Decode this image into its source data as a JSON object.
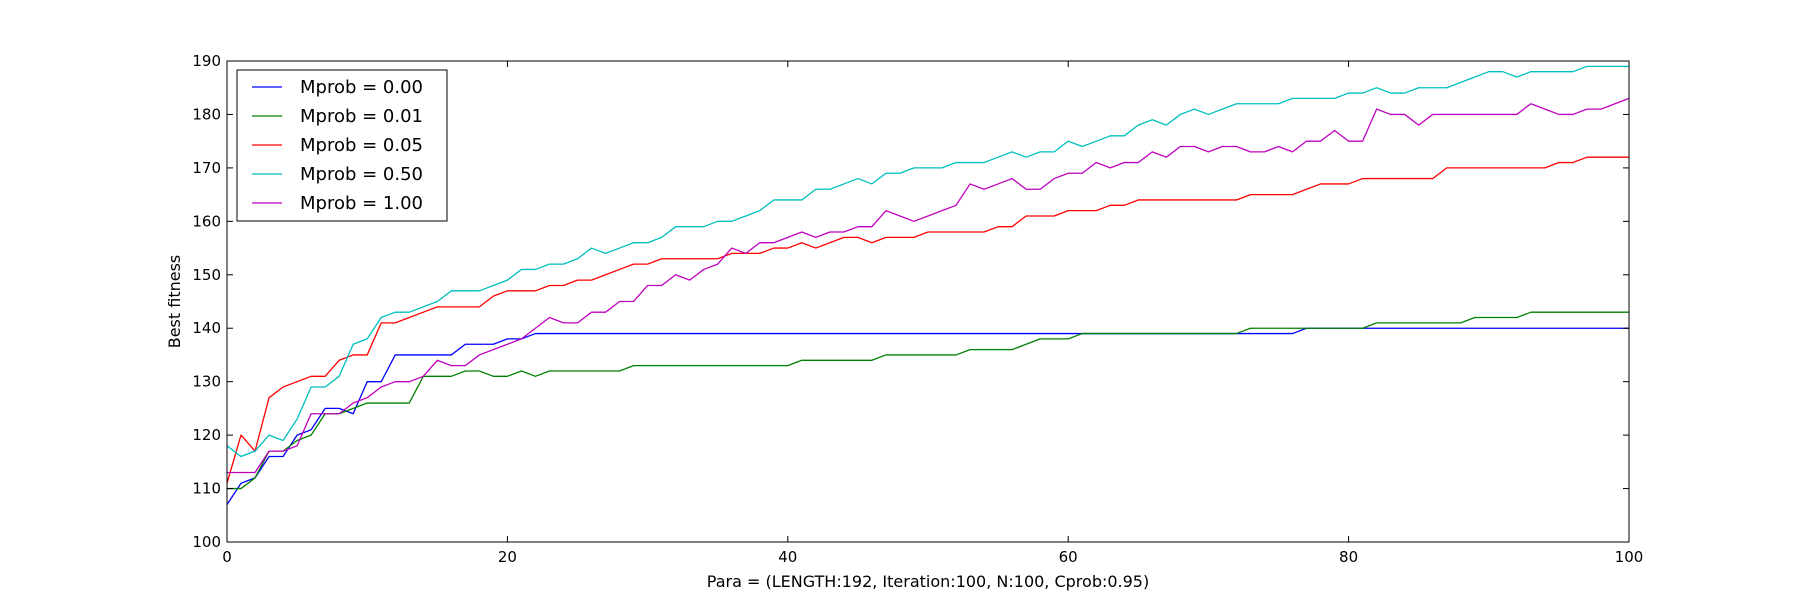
{
  "chart_data": {
    "type": "line",
    "title": "",
    "xlabel": "Para = (LENGTH:192, Iteration:100, N:100, Cprob:0.95)",
    "ylabel": "Best fitness",
    "xlim": [
      0,
      100
    ],
    "ylim": [
      100,
      190
    ],
    "x_ticks": [
      "0",
      "20",
      "40",
      "60",
      "80",
      "100"
    ],
    "y_ticks": [
      "100",
      "110",
      "120",
      "130",
      "140",
      "150",
      "160",
      "170",
      "180",
      "190"
    ],
    "grid": false,
    "legend_position": "top-left",
    "series": [
      {
        "name": "Mprob = 0.00",
        "color": "#0000ff",
        "values": [
          107,
          111,
          112,
          116,
          116,
          120,
          121,
          125,
          125,
          124,
          130,
          130,
          135,
          135,
          135,
          135,
          135,
          137,
          137,
          137,
          138,
          138,
          139,
          139,
          139,
          139,
          139,
          139,
          139,
          139,
          139,
          139,
          139,
          139,
          139,
          139,
          139,
          139,
          139,
          139,
          139,
          139,
          139,
          139,
          139,
          139,
          139,
          139,
          139,
          139,
          139,
          139,
          139,
          139,
          139,
          139,
          139,
          139,
          139,
          139,
          139,
          139,
          139,
          139,
          139,
          139,
          139,
          139,
          139,
          139,
          139,
          139,
          139,
          139,
          139,
          139,
          139,
          140,
          140,
          140,
          140,
          140,
          140,
          140,
          140,
          140,
          140,
          140,
          140,
          140,
          140,
          140,
          140,
          140,
          140,
          140,
          140,
          140,
          140,
          140,
          140
        ]
      },
      {
        "name": "Mprob = 0.01",
        "color": "#008000",
        "values": [
          110,
          110,
          112,
          117,
          117,
          119,
          120,
          124,
          124,
          125,
          126,
          126,
          126,
          126,
          131,
          131,
          131,
          132,
          132,
          131,
          131,
          132,
          131,
          132,
          132,
          132,
          132,
          132,
          132,
          133,
          133,
          133,
          133,
          133,
          133,
          133,
          133,
          133,
          133,
          133,
          133,
          134,
          134,
          134,
          134,
          134,
          134,
          135,
          135,
          135,
          135,
          135,
          135,
          136,
          136,
          136,
          136,
          137,
          138,
          138,
          138,
          139,
          139,
          139,
          139,
          139,
          139,
          139,
          139,
          139,
          139,
          139,
          139,
          140,
          140,
          140,
          140,
          140,
          140,
          140,
          140,
          140,
          141,
          141,
          141,
          141,
          141,
          141,
          141,
          142,
          142,
          142,
          142,
          143,
          143,
          143,
          143,
          143,
          143,
          143,
          143
        ]
      },
      {
        "name": "Mprob = 0.05",
        "color": "#ff0000",
        "values": [
          111,
          120,
          117,
          127,
          129,
          130,
          131,
          131,
          134,
          135,
          135,
          141,
          141,
          142,
          143,
          144,
          144,
          144,
          144,
          146,
          147,
          147,
          147,
          148,
          148,
          149,
          149,
          150,
          151,
          152,
          152,
          153,
          153,
          153,
          153,
          153,
          154,
          154,
          154,
          155,
          155,
          156,
          155,
          156,
          157,
          157,
          156,
          157,
          157,
          157,
          158,
          158,
          158,
          158,
          158,
          159,
          159,
          161,
          161,
          161,
          162,
          162,
          162,
          163,
          163,
          164,
          164,
          164,
          164,
          164,
          164,
          164,
          164,
          165,
          165,
          165,
          165,
          166,
          167,
          167,
          167,
          168,
          168,
          168,
          168,
          168,
          168,
          170,
          170,
          170,
          170,
          170,
          170,
          170,
          170,
          171,
          171,
          172,
          172,
          172,
          172
        ]
      },
      {
        "name": "Mprob = 0.50",
        "color": "#00bfbf",
        "values": [
          118,
          116,
          117,
          120,
          119,
          123,
          129,
          129,
          131,
          137,
          138,
          142,
          143,
          143,
          144,
          145,
          147,
          147,
          147,
          148,
          149,
          151,
          151,
          152,
          152,
          153,
          155,
          154,
          155,
          156,
          156,
          157,
          159,
          159,
          159,
          160,
          160,
          161,
          162,
          164,
          164,
          164,
          166,
          166,
          167,
          168,
          167,
          169,
          169,
          170,
          170,
          170,
          171,
          171,
          171,
          172,
          173,
          172,
          173,
          173,
          175,
          174,
          175,
          176,
          176,
          178,
          179,
          178,
          180,
          181,
          180,
          181,
          182,
          182,
          182,
          182,
          183,
          183,
          183,
          183,
          184,
          184,
          185,
          184,
          184,
          185,
          185,
          185,
          186,
          187,
          188,
          188,
          187,
          188,
          188,
          188,
          188,
          189,
          189,
          189,
          189
        ]
      },
      {
        "name": "Mprob = 1.00",
        "color": "#bf00bf",
        "values": [
          113,
          113,
          113,
          117,
          117,
          118,
          124,
          124,
          124,
          126,
          127,
          129,
          130,
          130,
          131,
          134,
          133,
          133,
          135,
          136,
          137,
          138,
          140,
          142,
          141,
          141,
          143,
          143,
          145,
          145,
          148,
          148,
          150,
          149,
          151,
          152,
          155,
          154,
          156,
          156,
          157,
          158,
          157,
          158,
          158,
          159,
          159,
          162,
          161,
          160,
          161,
          162,
          163,
          167,
          166,
          167,
          168,
          166,
          166,
          168,
          169,
          169,
          171,
          170,
          171,
          171,
          173,
          172,
          174,
          174,
          173,
          174,
          174,
          173,
          173,
          174,
          173,
          175,
          175,
          177,
          175,
          175,
          181,
          180,
          180,
          178,
          180,
          180,
          180,
          180,
          180,
          180,
          180,
          182,
          181,
          180,
          180,
          181,
          181,
          182,
          183
        ]
      }
    ]
  }
}
